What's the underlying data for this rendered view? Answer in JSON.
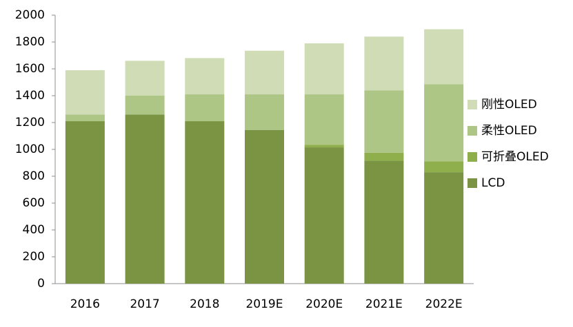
{
  "chart_data": {
    "type": "stacked_bar",
    "categories": [
      "2016",
      "2017",
      "2018",
      "2019E",
      "2020E",
      "2021E",
      "2022E"
    ],
    "series": [
      {
        "name": "LCD",
        "color": "#7a9443",
        "values": [
          1210,
          1260,
          1210,
          1145,
          1015,
          915,
          830
        ]
      },
      {
        "name": "可折叠OLED",
        "color": "#8fae4c",
        "values": [
          0,
          0,
          0,
          0,
          20,
          60,
          80
        ]
      },
      {
        "name": "柔性OLED",
        "color": "#adc585",
        "values": [
          50,
          140,
          200,
          265,
          375,
          465,
          575
        ]
      },
      {
        "name": "刚性OLED",
        "color": "#cfdcb5",
        "values": [
          330,
          260,
          270,
          325,
          380,
          400,
          410
        ]
      }
    ],
    "ylim": [
      0,
      2000
    ],
    "yticks": [
      0,
      200,
      400,
      600,
      800,
      1000,
      1200,
      1400,
      1600,
      1800,
      2000
    ],
    "legend": "right"
  }
}
